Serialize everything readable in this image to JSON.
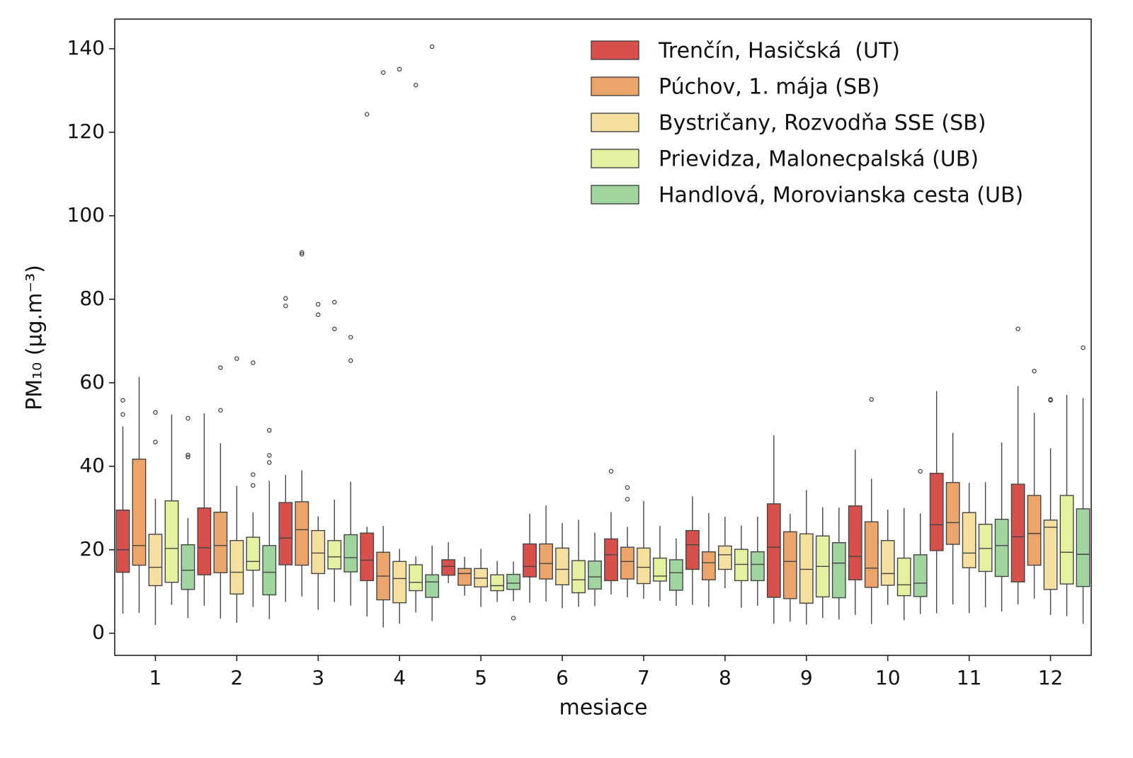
{
  "chart_data": {
    "type": "boxplot",
    "x_label": "mesiace",
    "y_label": "PM₁₀  (μg.m⁻³)",
    "categories": [
      "1",
      "2",
      "3",
      "4",
      "5",
      "6",
      "7",
      "8",
      "9",
      "10",
      "11",
      "12"
    ],
    "ylim": [
      -5.3,
      147.1
    ],
    "yticks": [
      0,
      20,
      40,
      60,
      80,
      100,
      120,
      140
    ],
    "legend": "upper right",
    "edge_color": "#444444",
    "series": [
      {
        "name": "Trenčín, Hasičská  (UT)",
        "color": "#d7504b",
        "boxes": [
          {
            "whislo": 4.7,
            "q1": 14.6,
            "med": 20,
            "q3": 29.5,
            "whishi": 49.5,
            "fliers": [
              55.8,
              52.4
            ]
          },
          {
            "whislo": 6.6,
            "q1": 14,
            "med": 20.5,
            "q3": 30,
            "whishi": 52.7,
            "fliers": []
          },
          {
            "whislo": 7.5,
            "q1": 16.4,
            "med": 22.8,
            "q3": 31.3,
            "whishi": 37.9,
            "fliers": [
              80.2,
              78.4
            ]
          },
          {
            "whislo": 4,
            "q1": 12.6,
            "med": 17.5,
            "q3": 24,
            "whishi": 25.5,
            "fliers": [
              124.3
            ]
          },
          {
            "whislo": 12,
            "q1": 13.9,
            "med": 16,
            "q3": 17.6,
            "whishi": 21.8,
            "fliers": []
          },
          {
            "whislo": 7.3,
            "q1": 13.5,
            "med": 16,
            "q3": 21.4,
            "whishi": 28.6,
            "fliers": []
          },
          {
            "whislo": 9.3,
            "q1": 12.6,
            "med": 18.8,
            "q3": 22.6,
            "whishi": 29,
            "fliers": [
              38.8
            ]
          },
          {
            "whislo": 6.8,
            "q1": 15.3,
            "med": 21.2,
            "q3": 24.6,
            "whishi": 32.8,
            "fliers": []
          },
          {
            "whislo": 2.3,
            "q1": 8.6,
            "med": 20.6,
            "q3": 31,
            "whishi": 47.4,
            "fliers": []
          },
          {
            "whislo": 4.4,
            "q1": 12.8,
            "med": 18.4,
            "q3": 30.5,
            "whishi": 44,
            "fliers": []
          },
          {
            "whislo": 4.8,
            "q1": 19.8,
            "med": 26,
            "q3": 38.3,
            "whishi": 58,
            "fliers": []
          },
          {
            "whislo": 6.9,
            "q1": 12.3,
            "med": 23.1,
            "q3": 35.7,
            "whishi": 59.2,
            "fliers": [
              72.9
            ]
          }
        ]
      },
      {
        "name": "Púchov, 1. mája (SB)",
        "color": "#eba46a",
        "boxes": [
          {
            "whislo": 4.9,
            "q1": 16.3,
            "med": 21,
            "q3": 41.7,
            "whishi": 61.4,
            "fliers": []
          },
          {
            "whislo": 3.5,
            "q1": 14.5,
            "med": 21,
            "q3": 29,
            "whishi": 45.5,
            "fliers": [
              63.6,
              53.4
            ]
          },
          {
            "whislo": 8.8,
            "q1": 16.3,
            "med": 24.8,
            "q3": 31.5,
            "whishi": 39,
            "fliers": [
              91.2,
              90.8
            ]
          },
          {
            "whislo": 1.4,
            "q1": 8,
            "med": 13.7,
            "q3": 19.4,
            "whishi": 25.7,
            "fliers": [
              134.3
            ]
          },
          {
            "whislo": 9,
            "q1": 11.5,
            "med": 14.3,
            "q3": 15.5,
            "whishi": 18.3,
            "fliers": []
          },
          {
            "whislo": 7.6,
            "q1": 13,
            "med": 16.7,
            "q3": 21.4,
            "whishi": 30.6,
            "fliers": []
          },
          {
            "whislo": 8.6,
            "q1": 13,
            "med": 17.2,
            "q3": 20.6,
            "whishi": 25.5,
            "fliers": [
              34.9,
              32.1
            ]
          },
          {
            "whislo": 6.3,
            "q1": 12.8,
            "med": 16.9,
            "q3": 19.5,
            "whishi": 28.8,
            "fliers": []
          },
          {
            "whislo": 2.8,
            "q1": 8.3,
            "med": 17.2,
            "q3": 24.3,
            "whishi": 28.6,
            "fliers": []
          },
          {
            "whislo": 2.2,
            "q1": 11,
            "med": 15.6,
            "q3": 26.7,
            "whishi": 37,
            "fliers": [
              56
            ]
          },
          {
            "whislo": 6.9,
            "q1": 21.3,
            "med": 26.5,
            "q3": 36.1,
            "whishi": 48,
            "fliers": []
          },
          {
            "whislo": 8.3,
            "q1": 16.3,
            "med": 23.9,
            "q3": 33,
            "whishi": 52.8,
            "fliers": [
              62.8
            ]
          }
        ]
      },
      {
        "name": "Bystričany, Rozvodňa SSE (SB)",
        "color": "#f5e0a0",
        "boxes": [
          {
            "whislo": 2,
            "q1": 11.4,
            "med": 15.8,
            "q3": 23.7,
            "whishi": 32.2,
            "fliers": [
              52.9,
              45.8
            ]
          },
          {
            "whislo": 2.5,
            "q1": 9.4,
            "med": 14.6,
            "q3": 22.2,
            "whishi": 35.3,
            "fliers": [
              65.8
            ]
          },
          {
            "whislo": 5.6,
            "q1": 14.3,
            "med": 19.2,
            "q3": 24.6,
            "whishi": 28,
            "fliers": [
              78.8,
              76.3
            ]
          },
          {
            "whislo": 2.3,
            "q1": 7.3,
            "med": 13.1,
            "q3": 17.2,
            "whishi": 20.2,
            "fliers": [
              135.1
            ]
          },
          {
            "whislo": 6.3,
            "q1": 11.1,
            "med": 13.2,
            "q3": 15.5,
            "whishi": 20.2,
            "fliers": []
          },
          {
            "whislo": 6,
            "q1": 11.6,
            "med": 15.3,
            "q3": 20.4,
            "whishi": 26.4,
            "fliers": []
          },
          {
            "whislo": 8.3,
            "q1": 11.9,
            "med": 15.8,
            "q3": 20.4,
            "whishi": 31.7,
            "fliers": []
          },
          {
            "whislo": 10.8,
            "q1": 15.3,
            "med": 18.8,
            "q3": 20.9,
            "whishi": 27.9,
            "fliers": []
          },
          {
            "whislo": 2.1,
            "q1": 7.2,
            "med": 15.3,
            "q3": 23.8,
            "whishi": 34.3,
            "fliers": []
          },
          {
            "whislo": 6.8,
            "q1": 11.5,
            "med": 14.3,
            "q3": 22.2,
            "whishi": 29.6,
            "fliers": []
          },
          {
            "whislo": 4.8,
            "q1": 15.7,
            "med": 19.2,
            "q3": 28.9,
            "whishi": 36,
            "fliers": []
          },
          {
            "whislo": 4.4,
            "q1": 10.5,
            "med": 25.4,
            "q3": 27.1,
            "whishi": 44.3,
            "fliers": [
              56,
              55.8
            ]
          }
        ]
      },
      {
        "name": "Prievidza, Malonecpalská (UB)",
        "color": "#e5f0a0",
        "boxes": [
          {
            "whislo": 6.8,
            "q1": 12.2,
            "med": 20.3,
            "q3": 31.7,
            "whishi": 52.4,
            "fliers": []
          },
          {
            "whislo": 6.3,
            "q1": 15.1,
            "med": 17.2,
            "q3": 23,
            "whishi": 28.9,
            "fliers": [
              64.8,
              38,
              35.4
            ]
          },
          {
            "whislo": 7.5,
            "q1": 15.4,
            "med": 18.3,
            "q3": 22.2,
            "whishi": 32,
            "fliers": [
              79.3,
              72.9
            ]
          },
          {
            "whislo": 5,
            "q1": 10.2,
            "med": 12.2,
            "q3": 16.4,
            "whishi": 18.4,
            "fliers": [
              131.3
            ]
          },
          {
            "whislo": 7.5,
            "q1": 10.2,
            "med": 11.4,
            "q3": 14,
            "whishi": 17.3,
            "fliers": []
          },
          {
            "whislo": 6.3,
            "q1": 9.7,
            "med": 12.8,
            "q3": 17.4,
            "whishi": 27.2,
            "fliers": []
          },
          {
            "whislo": 7.8,
            "q1": 12.5,
            "med": 13.7,
            "q3": 18,
            "whishi": 25.7,
            "fliers": []
          },
          {
            "whislo": 6.1,
            "q1": 12.6,
            "med": 16.5,
            "q3": 20.1,
            "whishi": 25.8,
            "fliers": []
          },
          {
            "whislo": 3.7,
            "q1": 8.7,
            "med": 16,
            "q3": 23.3,
            "whishi": 30.2,
            "fliers": []
          },
          {
            "whislo": 3.1,
            "q1": 9,
            "med": 11.6,
            "q3": 18,
            "whishi": 30,
            "fliers": []
          },
          {
            "whislo": 6.2,
            "q1": 14.8,
            "med": 20.3,
            "q3": 26.1,
            "whishi": 36.2,
            "fliers": []
          },
          {
            "whislo": 4.1,
            "q1": 11.8,
            "med": 19.4,
            "q3": 33,
            "whishi": 57.1,
            "fliers": []
          }
        ]
      },
      {
        "name": "Handlová, Morovianska cesta (UB)",
        "color": "#a1d5a0",
        "boxes": [
          {
            "whislo": 3.6,
            "q1": 10.5,
            "med": 15.1,
            "q3": 21.2,
            "whishi": 27.6,
            "fliers": [
              51.5,
              42.7,
              42.2
            ]
          },
          {
            "whislo": 3.4,
            "q1": 9.2,
            "med": 14.6,
            "q3": 21,
            "whishi": 36.5,
            "fliers": [
              48.6,
              42.6,
              40.9
            ]
          },
          {
            "whislo": 6.6,
            "q1": 14.7,
            "med": 18.1,
            "q3": 23.6,
            "whishi": 36.3,
            "fliers": [
              70.9,
              65.3
            ]
          },
          {
            "whislo": 2.9,
            "q1": 8.6,
            "med": 12.3,
            "q3": 14,
            "whishi": 21,
            "fliers": [
              140.5
            ]
          },
          {
            "whislo": 7.7,
            "q1": 10.5,
            "med": 12,
            "q3": 14.1,
            "whishi": 17.2,
            "fliers": [
              3.6
            ]
          },
          {
            "whislo": 6.5,
            "q1": 10.6,
            "med": 13.5,
            "q3": 17.3,
            "whishi": 24.1,
            "fliers": []
          },
          {
            "whislo": 6.6,
            "q1": 10.3,
            "med": 14.5,
            "q3": 17.6,
            "whishi": 22.7,
            "fliers": []
          },
          {
            "whislo": 6.6,
            "q1": 12.6,
            "med": 16.5,
            "q3": 19.5,
            "whishi": 27.9,
            "fliers": []
          },
          {
            "whislo": 3.3,
            "q1": 8.5,
            "med": 16.8,
            "q3": 21.7,
            "whishi": 30.1,
            "fliers": []
          },
          {
            "whislo": 4.6,
            "q1": 8.8,
            "med": 12,
            "q3": 18.8,
            "whishi": 28.7,
            "fliers": [
              38.8
            ]
          },
          {
            "whislo": 5.2,
            "q1": 13.6,
            "med": 21,
            "q3": 27.3,
            "whishi": 45.7,
            "fliers": []
          },
          {
            "whislo": 2.3,
            "q1": 11.2,
            "med": 18.9,
            "q3": 29.8,
            "whishi": 56.3,
            "fliers": [
              68.4
            ]
          }
        ]
      }
    ]
  }
}
